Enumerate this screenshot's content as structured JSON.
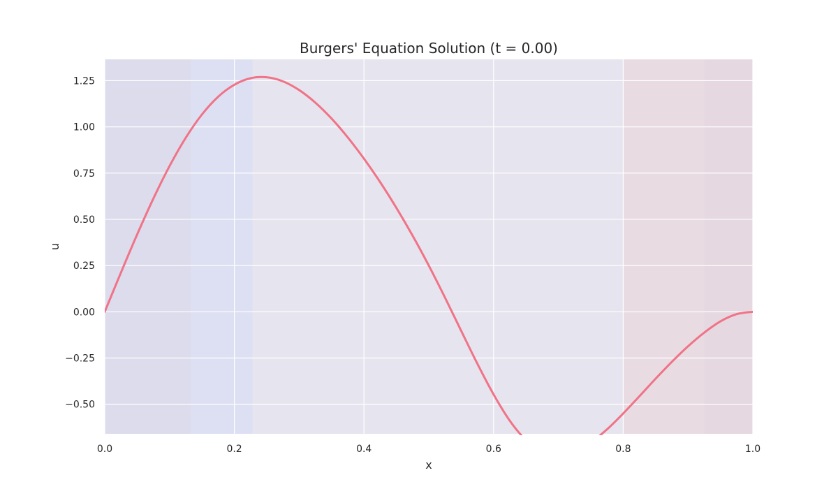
{
  "chart_data": {
    "type": "line",
    "title": "Burgers' Equation Solution (t = 0.00)",
    "xlabel": "x",
    "ylabel": "u",
    "xlim": [
      0.0,
      1.0
    ],
    "ylim": [
      -0.66,
      1.365
    ],
    "x_ticks": [
      0.0,
      0.2,
      0.4,
      0.6,
      0.8,
      1.0
    ],
    "x_tick_labels": [
      "0.0",
      "0.2",
      "0.4",
      "0.6",
      "0.8",
      "1.0"
    ],
    "y_ticks": [
      -0.5,
      -0.25,
      0.0,
      0.25,
      0.5,
      0.75,
      1.0,
      1.25
    ],
    "y_tick_labels": [
      "−0.50",
      "−0.25",
      "0.00",
      "0.25",
      "0.50",
      "0.75",
      "1.00",
      "1.25"
    ],
    "grid": true,
    "style": {
      "plot_background": "#eae8f0",
      "grid_color": "#ffffff",
      "line_color": "#f07387"
    },
    "background_bands": [
      {
        "x0": 0.0,
        "x1": 0.133,
        "color": "#dcdcec"
      },
      {
        "x0": 0.133,
        "x1": 0.228,
        "color": "#dde0f2"
      },
      {
        "x0": 0.228,
        "x1": 0.8,
        "color": "#e6e4ee"
      },
      {
        "x0": 0.8,
        "x1": 0.925,
        "color": "#e8dce2"
      },
      {
        "x0": 0.925,
        "x1": 1.0,
        "color": "#e5d8e0"
      }
    ],
    "series": [
      {
        "x": [
          0.0,
          0.025,
          0.05,
          0.075,
          0.1,
          0.125,
          0.15,
          0.175,
          0.2,
          0.225,
          0.25,
          0.275,
          0.3,
          0.325,
          0.35,
          0.375,
          0.4,
          0.425,
          0.45,
          0.475,
          0.5,
          0.525,
          0.55,
          0.575,
          0.6,
          0.625,
          0.65,
          0.675,
          0.7,
          0.725,
          0.75,
          0.775,
          0.8,
          0.825,
          0.85,
          0.875,
          0.9,
          0.925,
          0.95,
          0.975,
          1.0
        ],
        "values": [
          0.0,
          0.212,
          0.418,
          0.612,
          0.788,
          0.941,
          1.067,
          1.163,
          1.228,
          1.263,
          1.268,
          1.246,
          1.199,
          1.131,
          1.045,
          0.943,
          0.828,
          0.701,
          0.562,
          0.412,
          0.25,
          0.077,
          -0.103,
          -0.281,
          -0.447,
          -0.589,
          -0.694,
          -0.757,
          -0.776,
          -0.756,
          -0.707,
          -0.636,
          -0.55,
          -0.457,
          -0.362,
          -0.271,
          -0.187,
          -0.113,
          -0.052,
          -0.013,
          0.0
        ]
      }
    ]
  }
}
